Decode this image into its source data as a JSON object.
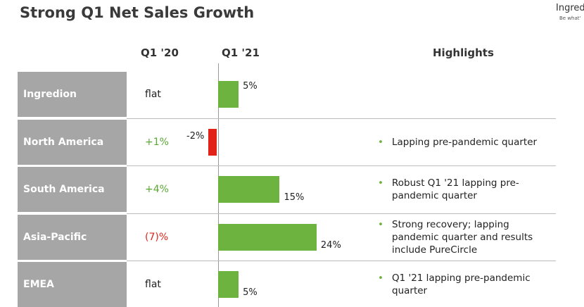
{
  "title": "Strong Q1 Net Sales Growth",
  "logo": {
    "name": "Ingred",
    "tagline": "Be what'"
  },
  "headers": {
    "q1_20": "Q1 '20",
    "q1_21": "Q1 '21",
    "highlights": "Highlights"
  },
  "bar_colors": {
    "positive": "#6cb33f",
    "negative": "#e2231a"
  },
  "rows": [
    {
      "label": "Ingredion",
      "q1_20": "flat",
      "q1_20_color": "#222222",
      "q1_21": 5,
      "q1_21_label": "5%",
      "highlights": []
    },
    {
      "label": "North America",
      "q1_20": "+1%",
      "q1_20_color": "#5aa832",
      "q1_21": -2,
      "q1_21_label": "-2%",
      "highlights": [
        "Lapping pre-pandemic quarter"
      ]
    },
    {
      "label": "South America",
      "q1_20": "+4%",
      "q1_20_color": "#5aa832",
      "q1_21": 15,
      "q1_21_label": "15%",
      "highlights": [
        "Robust Q1 '21 lapping pre-pandemic quarter"
      ]
    },
    {
      "label": "Asia-Pacific",
      "q1_20": "(7)%",
      "q1_20_color": "#e2231a",
      "q1_21": 24,
      "q1_21_label": "24%",
      "highlights": [
        "Strong recovery; lapping pandemic quarter and results include PureCircle"
      ]
    },
    {
      "label": "EMEA",
      "q1_20": "flat",
      "q1_20_color": "#222222",
      "q1_21": 5,
      "q1_21_label": "5%",
      "highlights": [
        "Q1 '21 lapping pre-pandemic quarter"
      ]
    }
  ]
}
